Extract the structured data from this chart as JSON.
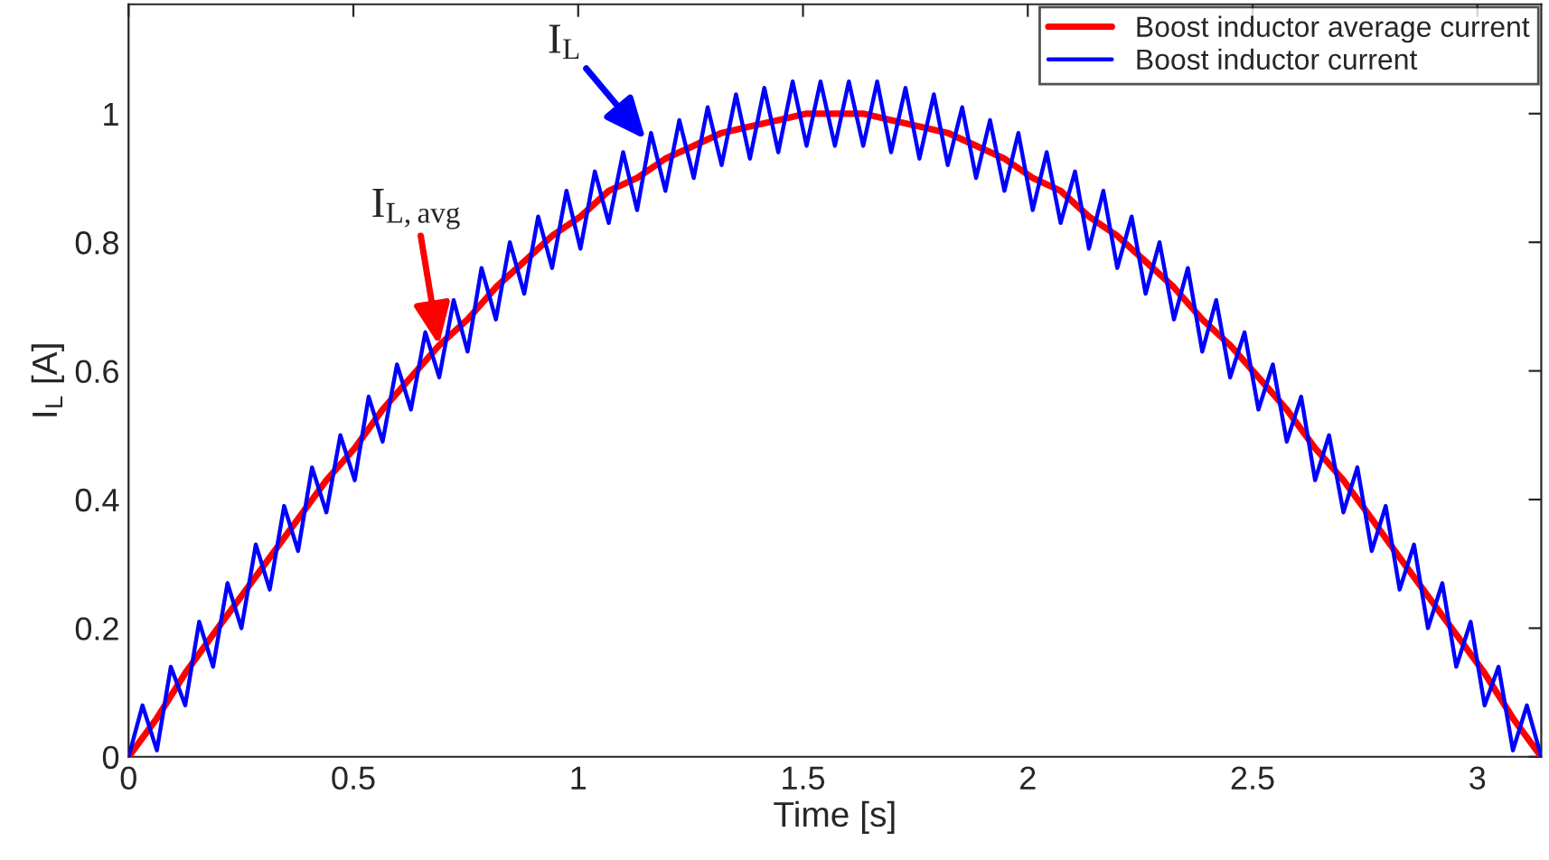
{
  "chart_data": {
    "type": "line",
    "xlabel": "Time [s]",
    "ylabel": "I$_{L}$ [A]",
    "xlim": [
      0,
      3.142
    ],
    "ylim": [
      0,
      1.17
    ],
    "xticks": [
      0,
      0.5,
      1,
      1.5,
      2,
      2.5,
      3
    ],
    "yticks": [
      0,
      0.2,
      0.4,
      0.6,
      0.8,
      1
    ],
    "grid": false,
    "legend": "top right",
    "line_style": "solid",
    "marker": "none",
    "series": [
      {
        "name": "Boost inductor average current",
        "color": "#ff0000",
        "x": [
          0,
          0.063,
          0.126,
          0.188,
          0.251,
          0.314,
          0.377,
          0.44,
          0.503,
          0.565,
          0.628,
          0.691,
          0.754,
          0.817,
          0.88,
          0.942,
          1.005,
          1.068,
          1.131,
          1.194,
          1.257,
          1.319,
          1.382,
          1.445,
          1.508,
          1.571,
          1.634,
          1.696,
          1.759,
          1.822,
          1.885,
          1.948,
          2.011,
          2.073,
          2.136,
          2.199,
          2.262,
          2.325,
          2.388,
          2.45,
          2.513,
          2.576,
          2.639,
          2.702,
          2.765,
          2.827,
          2.89,
          2.953,
          3.016,
          3.079,
          3.142
        ],
        "values": [
          0,
          0.06,
          0.13,
          0.19,
          0.25,
          0.31,
          0.37,
          0.43,
          0.48,
          0.54,
          0.59,
          0.64,
          0.68,
          0.73,
          0.77,
          0.81,
          0.84,
          0.88,
          0.9,
          0.93,
          0.95,
          0.97,
          0.98,
          0.99,
          1.0,
          1.0,
          1.0,
          0.99,
          0.98,
          0.97,
          0.95,
          0.93,
          0.9,
          0.88,
          0.84,
          0.81,
          0.77,
          0.73,
          0.68,
          0.64,
          0.59,
          0.54,
          0.48,
          0.43,
          0.37,
          0.31,
          0.25,
          0.19,
          0.13,
          0.06,
          0
        ]
      },
      {
        "name": "Boost inductor current",
        "color": "#0000ff",
        "x": [
          0,
          0.031,
          0.063,
          0.094,
          0.126,
          0.157,
          0.188,
          0.22,
          0.251,
          0.283,
          0.314,
          0.346,
          0.377,
          0.408,
          0.44,
          0.471,
          0.503,
          0.534,
          0.565,
          0.597,
          0.628,
          0.66,
          0.691,
          0.723,
          0.754,
          0.785,
          0.817,
          0.848,
          0.88,
          0.911,
          0.942,
          0.974,
          1.005,
          1.037,
          1.068,
          1.1,
          1.131,
          1.162,
          1.194,
          1.225,
          1.257,
          1.288,
          1.319,
          1.351,
          1.382,
          1.414,
          1.445,
          1.477,
          1.508,
          1.539,
          1.571,
          1.602,
          1.634,
          1.665,
          1.696,
          1.728,
          1.759,
          1.791,
          1.822,
          1.854,
          1.885,
          1.916,
          1.948,
          1.979,
          2.011,
          2.042,
          2.073,
          2.105,
          2.136,
          2.168,
          2.199,
          2.231,
          2.262,
          2.293,
          2.325,
          2.356,
          2.388,
          2.419,
          2.45,
          2.482,
          2.513,
          2.545,
          2.576,
          2.608,
          2.639,
          2.67,
          2.702,
          2.733,
          2.765,
          2.796,
          2.827,
          2.859,
          2.89,
          2.922,
          2.953,
          2.985,
          3.016,
          3.047,
          3.079,
          3.11,
          3.142
        ],
        "values": [
          0,
          0.08,
          0.01,
          0.14,
          0.08,
          0.21,
          0.14,
          0.27,
          0.2,
          0.33,
          0.26,
          0.39,
          0.32,
          0.45,
          0.38,
          0.5,
          0.43,
          0.56,
          0.49,
          0.61,
          0.54,
          0.66,
          0.59,
          0.71,
          0.63,
          0.76,
          0.68,
          0.8,
          0.72,
          0.84,
          0.76,
          0.88,
          0.79,
          0.91,
          0.83,
          0.94,
          0.85,
          0.97,
          0.88,
          0.99,
          0.9,
          1.01,
          0.92,
          1.03,
          0.93,
          1.04,
          0.94,
          1.05,
          0.95,
          1.05,
          0.95,
          1.05,
          0.95,
          1.05,
          0.94,
          1.04,
          0.93,
          1.03,
          0.92,
          1.01,
          0.9,
          0.99,
          0.88,
          0.97,
          0.85,
          0.94,
          0.83,
          0.91,
          0.79,
          0.88,
          0.76,
          0.84,
          0.72,
          0.8,
          0.68,
          0.76,
          0.63,
          0.71,
          0.59,
          0.66,
          0.54,
          0.61,
          0.49,
          0.56,
          0.43,
          0.5,
          0.38,
          0.45,
          0.32,
          0.39,
          0.26,
          0.33,
          0.2,
          0.27,
          0.14,
          0.21,
          0.08,
          0.14,
          0.01,
          0.08,
          0
        ]
      }
    ],
    "annotations": [
      {
        "text": "I$_{L,avg}$",
        "x": 0.69,
        "y": 0.64
      },
      {
        "text": "I$_{L}$",
        "x": 1.15,
        "y": 0.96
      }
    ]
  }
}
